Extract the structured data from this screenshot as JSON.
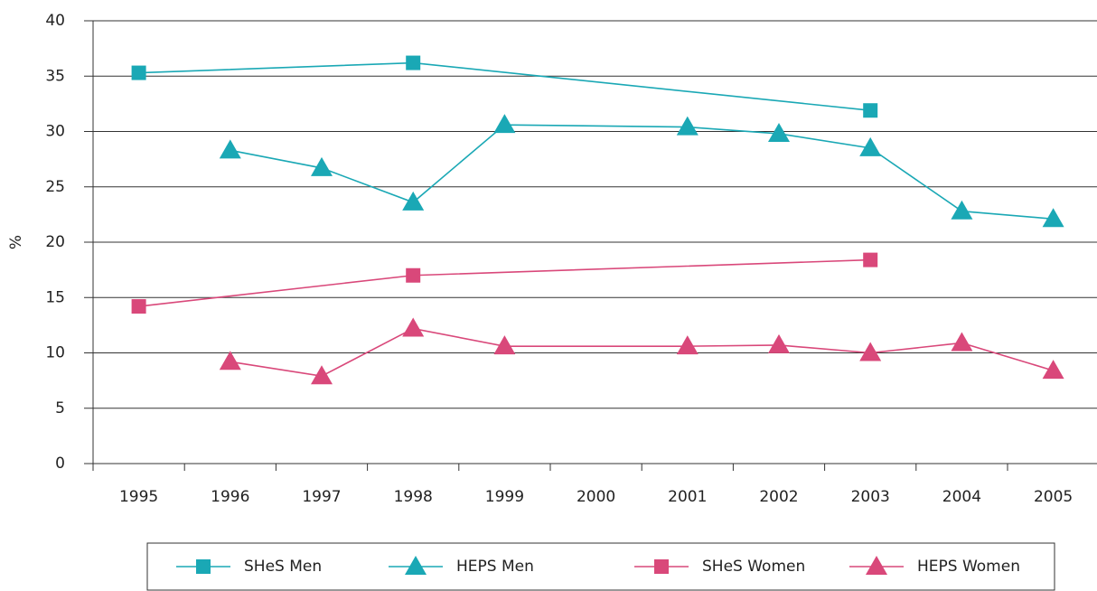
{
  "chart_data": {
    "type": "line",
    "y_label": "%",
    "categories": [
      1995,
      1996,
      1997,
      1998,
      1999,
      2000,
      2001,
      2002,
      2003,
      2004,
      2005
    ],
    "ylim": [
      0,
      40
    ],
    "yticks": [
      0,
      5,
      10,
      15,
      20,
      25,
      30,
      35,
      40
    ],
    "grid": true,
    "series": [
      {
        "name": "SHeS Men",
        "color": "#1aa8b5",
        "marker": "square",
        "x": [
          1995,
          1998,
          2003
        ],
        "values": [
          35.3,
          36.2,
          31.9
        ]
      },
      {
        "name": "HEPS Men",
        "color": "#1aa8b5",
        "marker": "triangle",
        "x": [
          1996,
          1997,
          1998,
          1999,
          2001,
          2002,
          2003,
          2004,
          2005
        ],
        "values": [
          28.3,
          26.7,
          23.6,
          30.6,
          30.4,
          29.8,
          28.5,
          22.8,
          22.1
        ]
      },
      {
        "name": "SHeS Women",
        "color": "#d9487a",
        "marker": "square",
        "x": [
          1995,
          1998,
          2003
        ],
        "values": [
          14.2,
          17.0,
          18.4
        ]
      },
      {
        "name": "HEPS Women",
        "color": "#d9487a",
        "marker": "triangle",
        "x": [
          1996,
          1997,
          1998,
          1999,
          2001,
          2002,
          2003,
          2004,
          2005
        ],
        "values": [
          9.2,
          7.9,
          12.2,
          10.6,
          10.6,
          10.7,
          10.0,
          10.9,
          8.4
        ]
      }
    ]
  }
}
